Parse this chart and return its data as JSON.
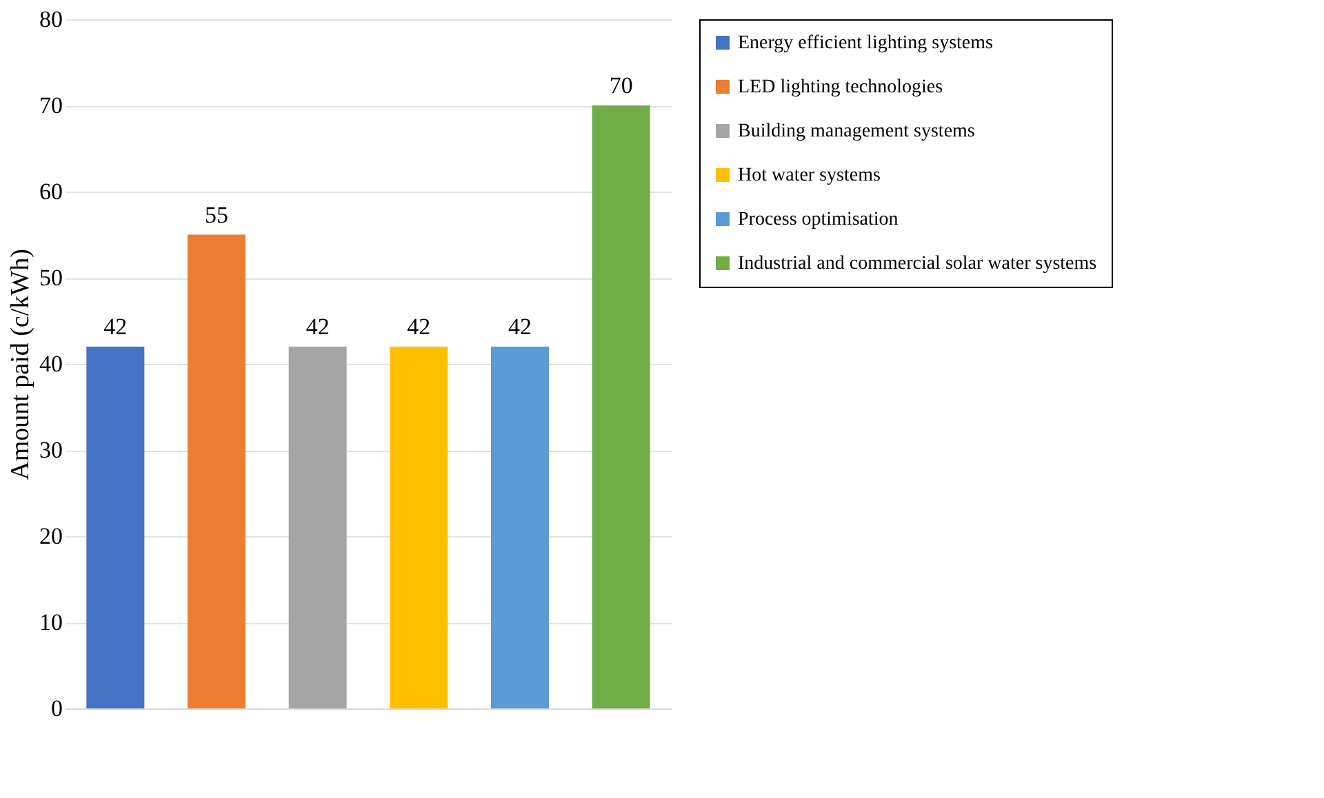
{
  "chart_data": {
    "type": "bar",
    "ylabel": "Amount paid (c/kWh)",
    "categories": [
      null,
      null,
      null,
      null,
      null,
      null
    ],
    "series": [
      {
        "name": "Energy efficient lighting systems",
        "color": "#4472c4",
        "values": [
          42,
          null,
          null,
          null,
          null,
          null
        ]
      },
      {
        "name": "LED lighting technologies",
        "color": "#ed7d31",
        "values": [
          null,
          55,
          null,
          null,
          null,
          null
        ]
      },
      {
        "name": "Building management systems",
        "color": "#a5a5a5",
        "values": [
          null,
          null,
          42,
          null,
          null,
          null
        ]
      },
      {
        "name": "Hot water systems",
        "color": "#ffc000",
        "values": [
          null,
          null,
          null,
          42,
          null,
          null
        ]
      },
      {
        "name": "Process optimisation",
        "color": "#5b9bd5",
        "values": [
          null,
          null,
          null,
          null,
          42,
          null
        ]
      },
      {
        "name": "Industrial and commercial solar water systems",
        "color": "#70ad47",
        "values": [
          null,
          null,
          null,
          null,
          null,
          70
        ]
      }
    ],
    "ylim": [
      0,
      80
    ],
    "yticks": [
      0,
      10,
      20,
      30,
      40,
      50,
      60,
      70,
      80
    ],
    "grid": "y",
    "legend": "right",
    "data_labels": true,
    "tick_labels": "y"
  }
}
